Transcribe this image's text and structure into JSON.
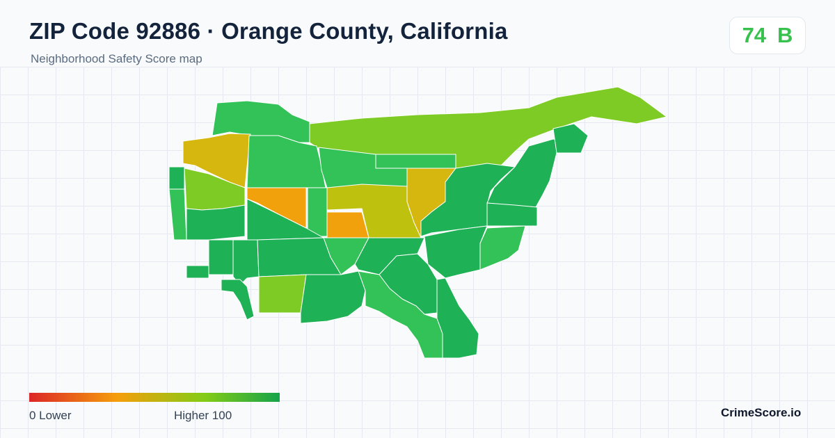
{
  "header": {
    "title": "ZIP Code 92886 · Orange County, California",
    "subtitle": "Neighborhood Safety Score map"
  },
  "score": {
    "value": "74",
    "grade": "B",
    "color": "#39c14f"
  },
  "legend": {
    "min_label": "0  Lower",
    "max_label": "Higher  100",
    "colors": [
      "#dc2626",
      "#f59e0b",
      "#84cc16",
      "#16a34a"
    ]
  },
  "brand": "CrimeScore.io",
  "map": {
    "region_colors": {
      "high": "#1fb155",
      "good": "#33c257",
      "fair": "#7dcb24",
      "moderate": "#bfc10f",
      "low": "#f0a10c",
      "mustard": "#d6b70f"
    }
  }
}
